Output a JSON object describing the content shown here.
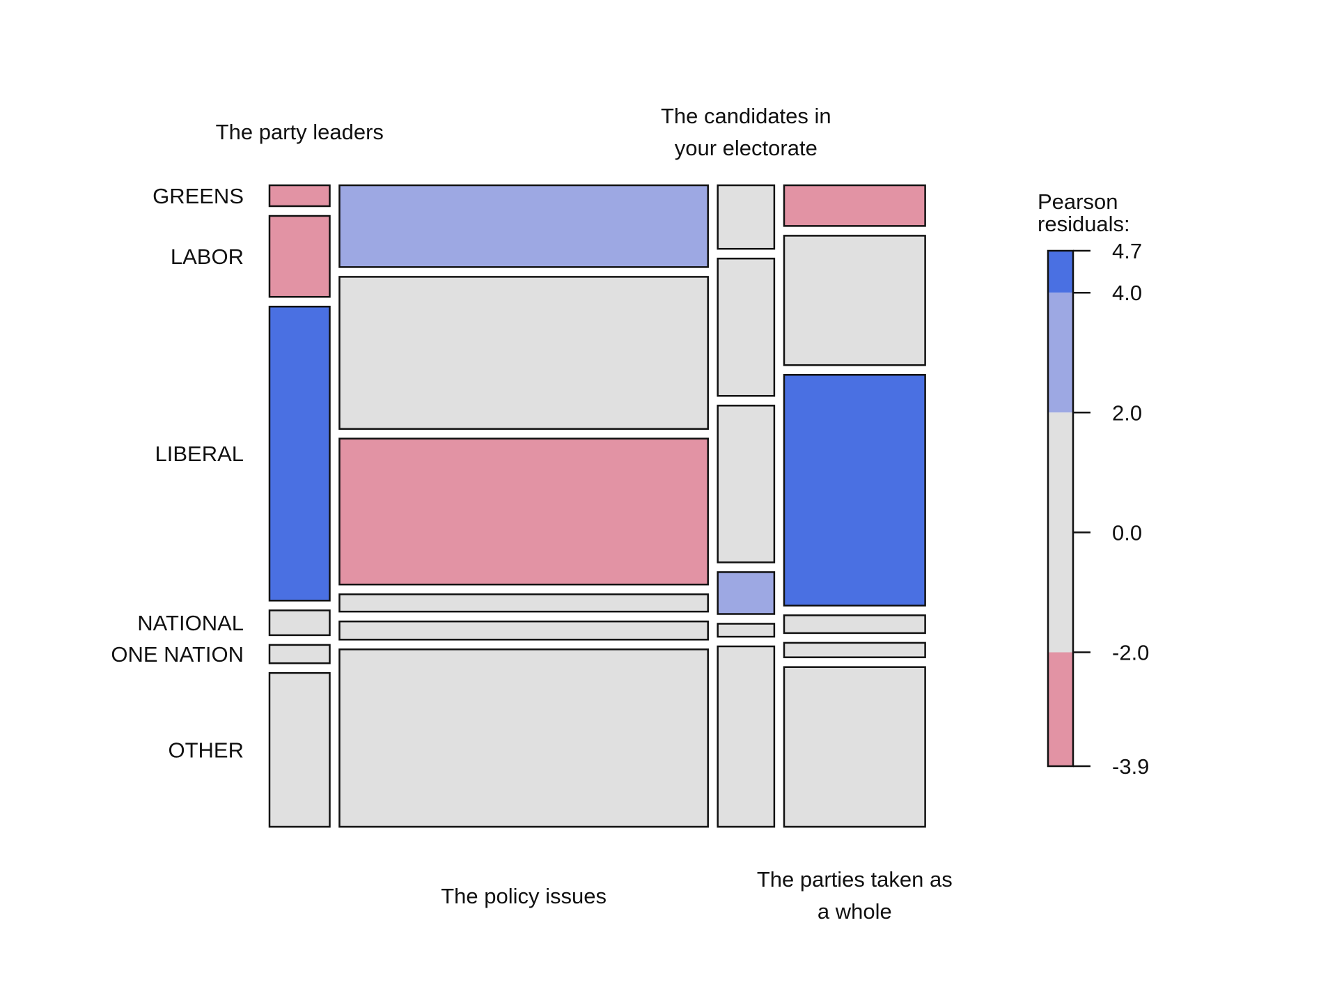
{
  "chart_data": {
    "type": "mosaic",
    "column_labels": [
      [
        "The party leaders"
      ],
      [
        "The policy issues"
      ],
      [
        "The candidates in",
        "your electorate"
      ],
      [
        "The parties taken as",
        "a whole"
      ]
    ],
    "column_label_positions": [
      "top",
      "bottom",
      "top",
      "bottom"
    ],
    "row_labels": [
      "GREENS",
      "LABOR",
      "LIBERAL",
      "NATIONAL",
      "ONE NATION",
      "OTHER"
    ],
    "column_shares": [
      0.0981,
      0.6,
      0.0921,
      0.2297
    ],
    "cells": [
      {
        "column": "The party leaders",
        "shares": [
          0.0353,
          0.1365,
          0.496,
          0.0418,
          0.0309,
          0.2595
        ],
        "residual_class": [
          "neg_weak",
          "neg_weak",
          "pos_strong",
          "neutral",
          "neutral",
          "neutral"
        ]
      },
      {
        "column": "The policy issues",
        "shares": [
          0.1379,
          0.2566,
          0.2462,
          0.0293,
          0.0307,
          0.2993
        ],
        "residual_class": [
          "pos_weak",
          "neutral",
          "neg_weak",
          "neutral",
          "neutral",
          "neutral"
        ]
      },
      {
        "column": "The candidates in your electorate",
        "shares": [
          0.1072,
          0.2316,
          0.2645,
          0.0706,
          0.0218,
          0.3043
        ],
        "residual_class": [
          "neutral",
          "neutral",
          "neutral",
          "pos_weak",
          "neutral",
          "neutral"
        ]
      },
      {
        "column": "The parties taken as a whole",
        "shares": [
          0.0686,
          0.2183,
          0.3892,
          0.03,
          0.0245,
          0.2694
        ],
        "residual_class": [
          "neg_weak",
          "neutral",
          "pos_strong",
          "neutral",
          "neutral",
          "neutral"
        ]
      }
    ],
    "legend": {
      "title": [
        "Pearson",
        "residuals:"
      ],
      "ticks": [
        4.7,
        4.0,
        2.0,
        0.0,
        -2.0,
        -3.9
      ],
      "tick_labels": [
        "4.7",
        "4.0",
        "2.0",
        "0.0",
        "-2.0",
        "-3.9"
      ],
      "range": [
        -3.9,
        4.7
      ],
      "bands": [
        {
          "from": 4.0,
          "to": 4.7,
          "class": "pos_strong"
        },
        {
          "from": 2.0,
          "to": 4.0,
          "class": "pos_weak"
        },
        {
          "from": -2.0,
          "to": 2.0,
          "class": "neutral"
        },
        {
          "from": -3.9,
          "to": -2.0,
          "class": "neg_weak"
        }
      ]
    },
    "colors": {
      "pos_strong": "#4a70e2",
      "pos_weak": "#9da8e3",
      "neutral": "#e0e0e0",
      "neg_weak": "#e293a4"
    }
  }
}
